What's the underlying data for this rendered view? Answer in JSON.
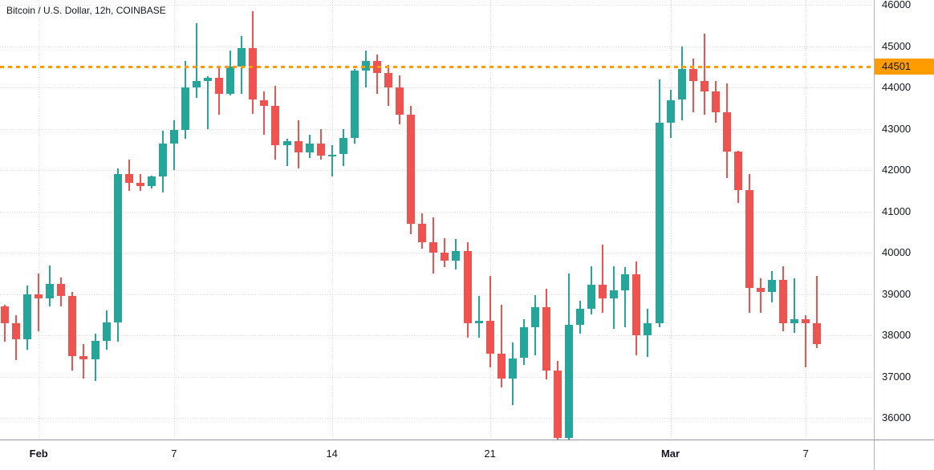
{
  "header": {
    "symbol_title": "Bitcoin / U.S. Dollar, 12h, COINBASE"
  },
  "colors": {
    "up": "#26a69a",
    "down": "#ef5350",
    "level": "#ff9d00",
    "grid": "#d7d9e0",
    "axis_border": "#b2b5be",
    "text": "#131722",
    "background": "#ffffff"
  },
  "price_axis": {
    "ticks": [
      46000,
      45000,
      44000,
      43000,
      42000,
      41000,
      40000,
      39000,
      38000,
      37000,
      36000
    ],
    "level_label": "44501"
  },
  "time_axis": {
    "labels": [
      {
        "text": "Feb",
        "index": 3,
        "bold": true
      },
      {
        "text": "7",
        "index": 15,
        "bold": false
      },
      {
        "text": "14",
        "index": 29,
        "bold": false
      },
      {
        "text": "21",
        "index": 43,
        "bold": false
      },
      {
        "text": "Mar",
        "index": 59,
        "bold": true
      },
      {
        "text": "7",
        "index": 71,
        "bold": false
      }
    ]
  },
  "chart_data": {
    "type": "candlestick",
    "title": "Bitcoin / U.S. Dollar, 12h, COINBASE",
    "symbol": "Bitcoin / U.S. Dollar",
    "interval": "12h",
    "exchange": "COINBASE",
    "level_line_price": 44501,
    "y_axis": {
      "min": 35500,
      "max": 46100,
      "tick_step": 1000,
      "side": "right"
    },
    "x_tick_labels": [
      "Feb",
      "7",
      "14",
      "21",
      "Mar",
      "7"
    ],
    "grid": true,
    "candles_format": [
      "open",
      "high",
      "low",
      "close"
    ],
    "candles": [
      [
        38700,
        38750,
        37850,
        38300
      ],
      [
        38300,
        38500,
        37400,
        37900
      ],
      [
        37900,
        39200,
        37650,
        39000
      ],
      [
        39000,
        39500,
        38100,
        38900
      ],
      [
        38900,
        39700,
        38700,
        39250
      ],
      [
        39250,
        39400,
        38700,
        38950
      ],
      [
        38950,
        39050,
        37150,
        37500
      ],
      [
        37500,
        37800,
        36950,
        37430
      ],
      [
        37430,
        38050,
        36900,
        37870
      ],
      [
        37870,
        38600,
        37650,
        38320
      ],
      [
        38320,
        42050,
        37850,
        41900
      ],
      [
        41900,
        42250,
        41500,
        41700
      ],
      [
        41700,
        41900,
        41500,
        41620
      ],
      [
        41620,
        41870,
        41550,
        41850
      ],
      [
        41850,
        42950,
        41450,
        42650
      ],
      [
        42650,
        43200,
        42000,
        42970
      ],
      [
        42970,
        44650,
        42750,
        44000
      ],
      [
        44000,
        45550,
        43750,
        44150
      ],
      [
        44150,
        44280,
        43000,
        44230
      ],
      [
        44230,
        44500,
        43350,
        43850
      ],
      [
        43850,
        44900,
        43800,
        44500
      ],
      [
        44500,
        45250,
        43850,
        44950
      ],
      [
        44950,
        45850,
        43350,
        43700
      ],
      [
        43700,
        43900,
        42850,
        43550
      ],
      [
        43550,
        44050,
        42250,
        42600
      ],
      [
        42600,
        42760,
        42100,
        42700
      ],
      [
        42700,
        43200,
        42050,
        42430
      ],
      [
        42430,
        42850,
        42300,
        42650
      ],
      [
        42650,
        43000,
        42250,
        42350
      ],
      [
        42350,
        42600,
        41850,
        42380
      ],
      [
        42380,
        43000,
        42100,
        42780
      ],
      [
        42780,
        44450,
        42650,
        44400
      ],
      [
        44400,
        44900,
        44000,
        44650
      ],
      [
        44650,
        44800,
        43850,
        44350
      ],
      [
        44350,
        44550,
        43550,
        44000
      ],
      [
        44000,
        44300,
        43100,
        43350
      ],
      [
        43350,
        43550,
        40450,
        40700
      ],
      [
        40700,
        40950,
        40100,
        40250
      ],
      [
        40250,
        40850,
        39500,
        40000
      ],
      [
        40000,
        40350,
        39650,
        39800
      ],
      [
        39800,
        40330,
        39600,
        40050
      ],
      [
        40050,
        40250,
        37950,
        38300
      ],
      [
        38300,
        38950,
        37950,
        38350
      ],
      [
        38350,
        39450,
        37230,
        37550
      ],
      [
        37550,
        38750,
        36750,
        36950
      ],
      [
        36950,
        37830,
        36320,
        37450
      ],
      [
        37450,
        38400,
        37290,
        38200
      ],
      [
        38200,
        38980,
        37520,
        38690
      ],
      [
        38690,
        39130,
        36940,
        37150
      ],
      [
        37150,
        37390,
        35400,
        35520
      ],
      [
        35520,
        39500,
        35400,
        38260
      ],
      [
        38260,
        38840,
        38050,
        38650
      ],
      [
        38650,
        39670,
        38500,
        39230
      ],
      [
        39230,
        40200,
        38550,
        38900
      ],
      [
        38900,
        39670,
        38160,
        39100
      ],
      [
        39100,
        39650,
        38200,
        39480
      ],
      [
        39480,
        39800,
        37520,
        38000
      ],
      [
        38000,
        38650,
        37480,
        38300
      ],
      [
        38300,
        44200,
        38200,
        43150
      ],
      [
        43150,
        43950,
        42780,
        43700
      ],
      [
        43700,
        45000,
        43200,
        44450
      ],
      [
        44450,
        44700,
        43400,
        44150
      ],
      [
        44150,
        45300,
        43350,
        43900
      ],
      [
        43900,
        44150,
        43150,
        43400
      ],
      [
        43400,
        44100,
        41800,
        42450
      ],
      [
        42450,
        42470,
        41200,
        41520
      ],
      [
        41520,
        41900,
        38550,
        39150
      ],
      [
        39150,
        39380,
        38550,
        39050
      ],
      [
        39050,
        39560,
        38800,
        39350
      ],
      [
        39350,
        39680,
        38100,
        38300
      ],
      [
        38300,
        39380,
        38070,
        38400
      ],
      [
        38400,
        38500,
        37230,
        38300
      ],
      [
        38300,
        39450,
        37700,
        37800
      ]
    ]
  }
}
